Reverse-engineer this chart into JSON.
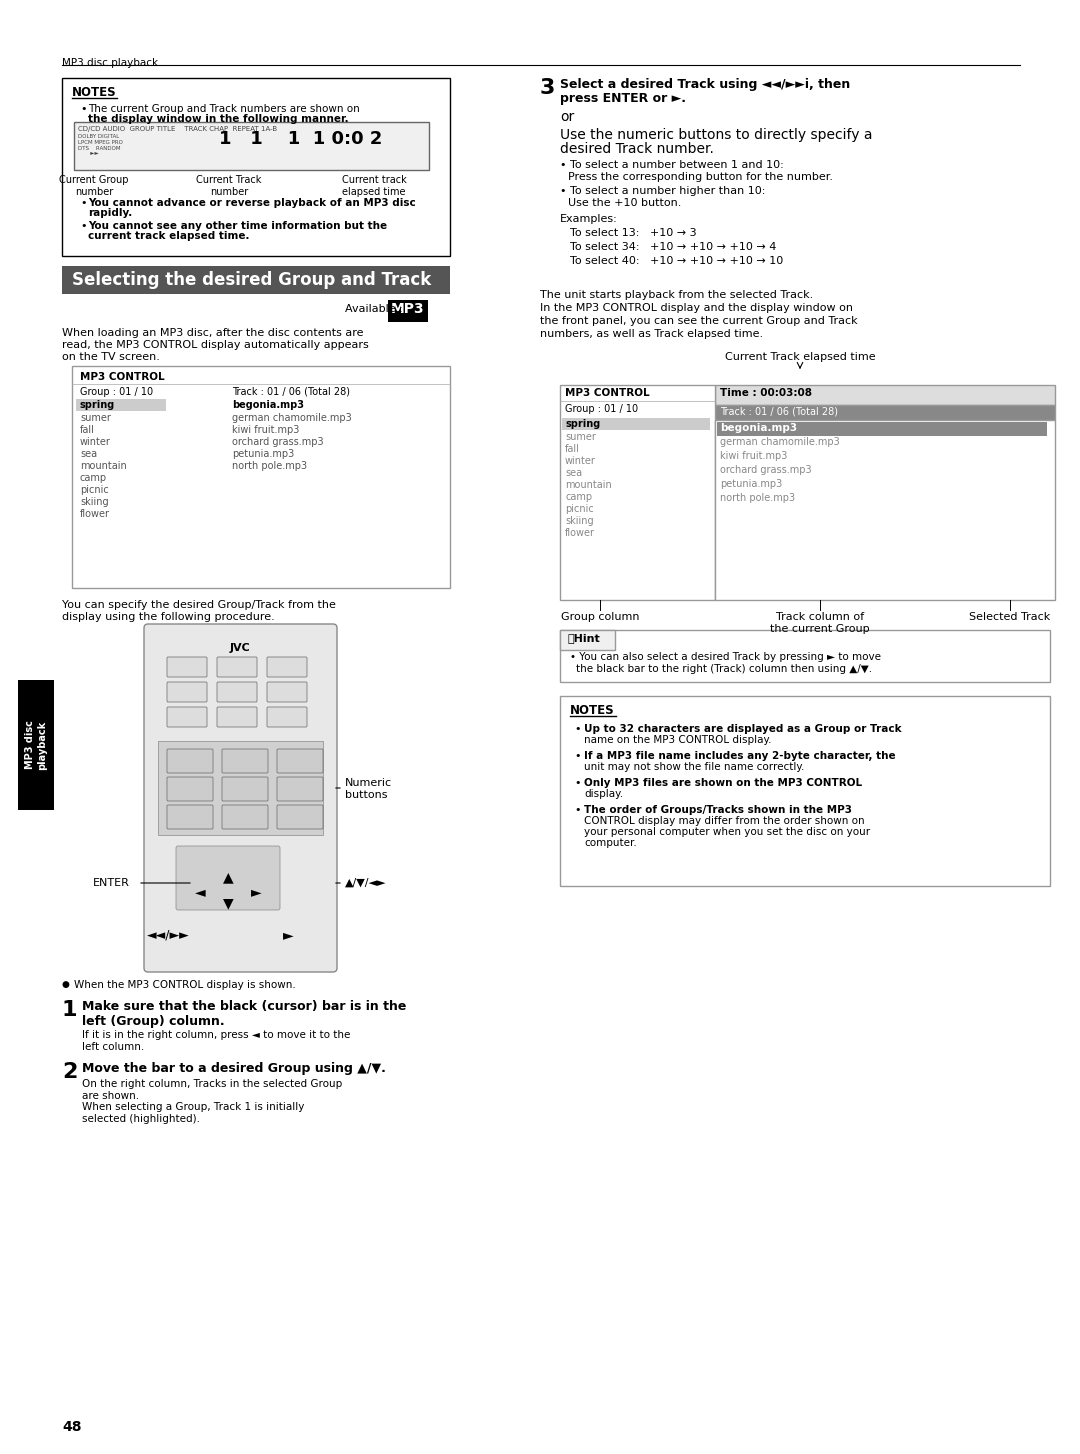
{
  "page_header": "MP3 disc playback",
  "page_number": "48",
  "background_color": "#ffffff",
  "notes_box_1": {
    "title": "NOTES",
    "bullets": [
      "The current Group and Track numbers are shown on the display window in the following manner.",
      "You cannot advance or reverse playback of an MP3 disc rapidly.",
      "You cannot see any other time information but the current track elapsed time."
    ],
    "display_labels": [
      "Current Group\nnumber",
      "Current Track\nnumber",
      "Current track\nelapsed time"
    ]
  },
  "section_title": "Selecting the desired Group and Track",
  "available_label": "Available :",
  "intro_text": "When loading an MP3 disc, after the disc contents are\nread, the MP3 CONTROL display automatically appears\non the TV screen.",
  "mp3_control_box": {
    "title": "MP3 CONTROL",
    "header_row": [
      "Group : 01 / 10",
      "Track : 01 / 06 (Total 28)"
    ],
    "groups": [
      "spring",
      "sumer",
      "fall",
      "winter",
      "sea",
      "mountain",
      "camp",
      "picnic",
      "skiing",
      "flower"
    ],
    "tracks": [
      "begonia.mp3",
      "german chamomile.mp3",
      "kiwi fruit.mp3",
      "orchard grass.mp3",
      "petunia.mp3",
      "north pole.mp3"
    ],
    "selected_group": "spring",
    "selected_track": "begonia.mp3"
  },
  "specify_text": "You can specify the desired Group/Track from the\ndisplay using the following procedure.",
  "remote_labels": [
    "Numeric\nbuttons",
    "ENTER",
    "▲/▼/◄►",
    "◄◄/►►",
    "►"
  ],
  "step1_num": "1",
  "step1_bold": "Make sure that the black (cursor) bar is in the\nleft (Group) column.",
  "step1_text": "If it is in the right column, press ◄ to move it to the\nleft column.",
  "step2_num": "2",
  "step2_bold": "Move the bar to a desired Group using ▲/▼.",
  "step2_text": "On the right column, Tracks in the selected Group\nare shown.\nWhen selecting a Group, Track 1 is initially\nselected (highlighted).",
  "step3_num": "3",
  "step3_bold1": "Select a desired Track using ◄◄/►►i, then\npress ENTER or ►.",
  "step3_or": "or",
  "step3_bold2": "Use the numeric buttons to directly specify a\ndesired Track number.",
  "step3_bullets": [
    "To select a number between 1 and 10:\n  Press the corresponding button for the number.",
    "To select a number higher than 10:\n  Use the +10 button."
  ],
  "step3_examples": "Examples:\n  To select 13:   +10 → 3\n  To select 34:   +10 → +10 → +10 → 4\n  To select 40:   +10 → +10 → +10 → 10",
  "playback_text": "The unit starts playback from the selected Track.\nIn the MP3 CONTROL display and the display window on\nthe front panel, you can see the current Group and Track\nnumbers, as well as Track elapsed time.",
  "current_track_label": "Current Track elapsed time",
  "mp3_control_box2": {
    "title": "MP3 CONTROL",
    "time_label": "Time : 00:03:08",
    "track_label": "Track : 01 / 06 (Total 28)",
    "group_label": "Group : 01 / 10",
    "groups": [
      "spring",
      "sumer",
      "fall",
      "winter",
      "sea",
      "mountain",
      "camp",
      "picnic",
      "skiing",
      "flower"
    ],
    "tracks": [
      "begonia.mp3",
      "german chamomile.mp3",
      "kiwi fruit.mp3",
      "orchard grass.mp3",
      "petunia.mp3",
      "north pole.mp3"
    ],
    "selected_group": "spring",
    "selected_track": "begonia.mp3"
  },
  "column_labels": [
    "Group column",
    "Track column of\nthe current Group",
    "Selected Track"
  ],
  "hint_box": {
    "title": "Hint",
    "text": "You can also select a desired Track by pressing ► to move\nthe black bar to the right (Track) column then using ▲/▼."
  },
  "notes_box_2": {
    "title": "NOTES",
    "bullets": [
      "Up to 32 characters are displayed as a Group or Track name on the MP3 CONTROL display.",
      "If a MP3 file name includes any 2-byte character, the unit may not show the file name correctly.",
      "Only MP3 files are shown on the MP3 CONTROL display.",
      "The order of Groups/Tracks shown in the MP3 CONTROL display may differ from the order shown on your personal computer when you set the disc on your computer."
    ]
  },
  "side_tab": {
    "text": "MP3 disc\nplayback",
    "bg_color": "#000000",
    "text_color": "#ffffff"
  }
}
